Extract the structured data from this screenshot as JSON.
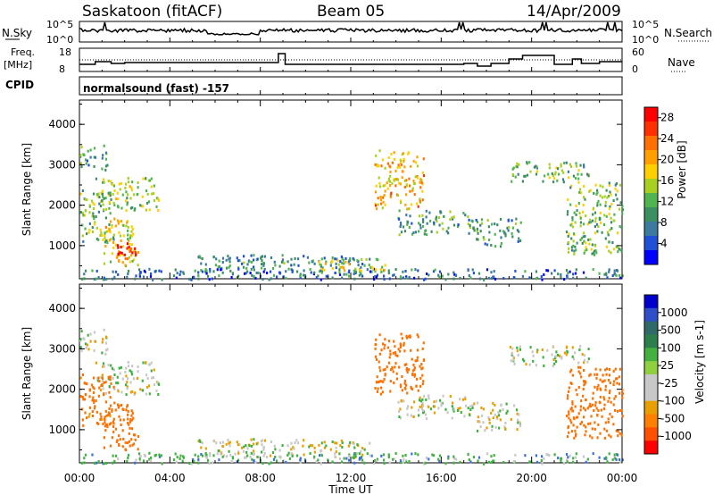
{
  "header": {
    "station": "Saskatoon (fitACF)",
    "beam": "Beam 05",
    "date": "14/Apr/2009"
  },
  "sky_panel": {
    "left_label": "N.Sky",
    "right_label": "N.Search",
    "left_ticks": [
      "10^5",
      "10^0"
    ],
    "right_ticks": [
      "10^5",
      "10^0"
    ]
  },
  "freq_panel": {
    "left_label_1": "Freq.",
    "left_label_2": "[MHz]",
    "right_label": "Nave",
    "left_ticks": [
      "18",
      "8"
    ],
    "right_ticks": [
      "60",
      "0"
    ]
  },
  "cpid": {
    "label": "CPID",
    "text": "normalsound (fast) -157"
  },
  "colors": {
    "power_scale": [
      "#0000ff",
      "#2050d8",
      "#3c7a9e",
      "#3c9060",
      "#50b450",
      "#a8d020",
      "#ffd000",
      "#ffa000",
      "#ff7000",
      "#ff3000",
      "#ff0000"
    ],
    "velocity_scale": [
      "#0000cc",
      "#3050c8",
      "#306868",
      "#2a7a48",
      "#40b040",
      "#8cd040",
      "#c8c8c8",
      "#c8c8c8",
      "#e8a000",
      "#ff8000",
      "#ff5000",
      "#ff0000"
    ]
  },
  "chart_data": [
    {
      "type": "heatmap",
      "name": "power",
      "ylabel": "Slant Range [km]",
      "xlabel": "Time UT",
      "x_ticks": [
        "00:00",
        "04:00",
        "08:00",
        "12:00",
        "16:00",
        "20:00",
        "00:00"
      ],
      "y_ticks": [
        1000,
        2000,
        3000,
        4000
      ],
      "ylim": [
        180,
        4600
      ],
      "xlim_hours": [
        0,
        24
      ],
      "colorbar": {
        "label": "Power [dB]",
        "ticks": [
          4,
          8,
          12,
          16,
          20,
          24,
          28
        ],
        "range": [
          0,
          30
        ]
      },
      "echo_regions": [
        {
          "t0": 0.0,
          "t1": 1.2,
          "r0": 2900,
          "r1": 3500,
          "value": 10
        },
        {
          "t0": 0.7,
          "t1": 3.5,
          "r0": 1900,
          "r1": 2700,
          "value": 14
        },
        {
          "t0": 0.0,
          "t1": 1.5,
          "r0": 1100,
          "r1": 2400,
          "value": 12
        },
        {
          "t0": 1.0,
          "t1": 2.6,
          "r0": 500,
          "r1": 1700,
          "value": 18
        },
        {
          "t0": 1.5,
          "t1": 2.5,
          "r0": 800,
          "r1": 1100,
          "value": 30
        },
        {
          "t0": 5.0,
          "t1": 12.8,
          "r0": 350,
          "r1": 800,
          "value": 8
        },
        {
          "t0": 0.0,
          "t1": 24.0,
          "r0": 180,
          "r1": 450,
          "value": 6
        },
        {
          "t0": 10.5,
          "t1": 13.5,
          "r0": 350,
          "r1": 700,
          "value": 16
        },
        {
          "t0": 13.0,
          "t1": 15.2,
          "r0": 1900,
          "r1": 3400,
          "value": 20
        },
        {
          "t0": 14.0,
          "t1": 17.5,
          "r0": 1300,
          "r1": 1900,
          "value": 10
        },
        {
          "t0": 17.5,
          "t1": 19.5,
          "r0": 1000,
          "r1": 1700,
          "value": 9
        },
        {
          "t0": 19.0,
          "t1": 22.5,
          "r0": 2600,
          "r1": 3100,
          "value": 12
        },
        {
          "t0": 21.5,
          "t1": 24.0,
          "r0": 800,
          "r1": 2600,
          "value": 13
        }
      ]
    },
    {
      "type": "heatmap",
      "name": "velocity",
      "ylabel": "Slant Range [km]",
      "xlabel": "Time UT",
      "x_ticks": [
        "00:00",
        "04:00",
        "08:00",
        "12:00",
        "16:00",
        "20:00",
        "00:00"
      ],
      "y_ticks": [
        1000,
        2000,
        3000,
        4000
      ],
      "ylim": [
        180,
        4600
      ],
      "xlim_hours": [
        0,
        24
      ],
      "colorbar": {
        "label": "Velocity [m s-1]",
        "tick_labels": [
          "1000",
          "500",
          "100",
          "25",
          "-25",
          "-100",
          "-500",
          "-1000"
        ]
      },
      "echo_regions": [
        {
          "t0": 0.0,
          "t1": 1.2,
          "r0": 2900,
          "r1": 3500,
          "value": 0
        },
        {
          "t0": 0.7,
          "t1": 3.5,
          "r0": 1900,
          "r1": 2700,
          "value": 0
        },
        {
          "t0": 0.0,
          "t1": 1.5,
          "r0": 1100,
          "r1": 2400,
          "value": -150
        },
        {
          "t0": 1.0,
          "t1": 2.6,
          "r0": 500,
          "r1": 1700,
          "value": -200
        },
        {
          "t0": 5.0,
          "t1": 12.8,
          "r0": 350,
          "r1": 800,
          "value": 0
        },
        {
          "t0": 0.0,
          "t1": 24.0,
          "r0": 180,
          "r1": 450,
          "value": 60
        },
        {
          "t0": 13.0,
          "t1": 15.2,
          "r0": 1900,
          "r1": 3400,
          "value": -180
        },
        {
          "t0": 14.0,
          "t1": 17.5,
          "r0": 1300,
          "r1": 1900,
          "value": 0
        },
        {
          "t0": 17.5,
          "t1": 19.5,
          "r0": 1000,
          "r1": 1700,
          "value": 0
        },
        {
          "t0": 19.0,
          "t1": 22.5,
          "r0": 2600,
          "r1": 3100,
          "value": 0
        },
        {
          "t0": 21.5,
          "t1": 24.0,
          "r0": 800,
          "r1": 2600,
          "value": -200
        }
      ]
    }
  ]
}
